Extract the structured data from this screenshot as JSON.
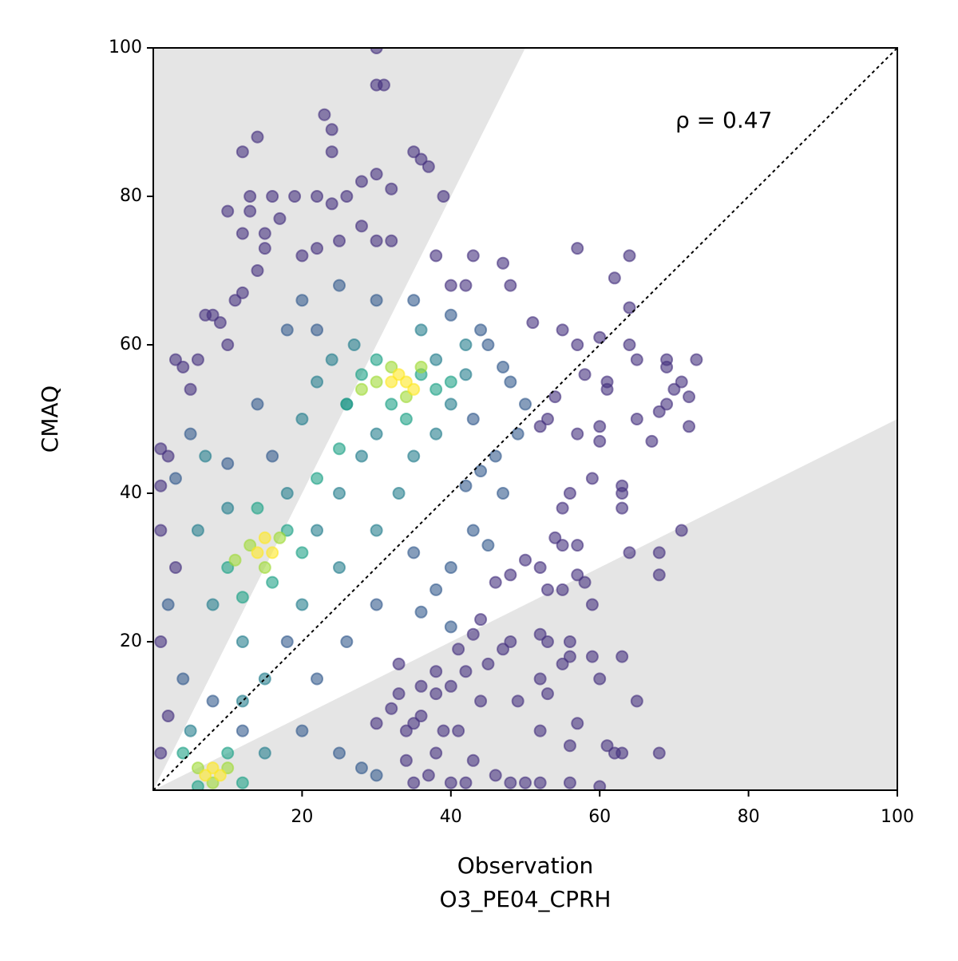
{
  "chart_data": {
    "type": "scatter",
    "xlabel": [
      "Observation",
      "O3_PE04_CPRH"
    ],
    "ylabel": "CMAQ",
    "annotation": "ρ = 0.47",
    "xlim": [
      0,
      100
    ],
    "ylim": [
      0,
      100
    ],
    "xticks": [
      20,
      40,
      60,
      80,
      100
    ],
    "yticks": [
      20,
      40,
      60,
      80,
      100
    ],
    "identity_line": true,
    "shade_slopes": [
      0.5,
      2
    ],
    "shade_color": "#e5e5e5",
    "marker_opacity": 0.6,
    "groups": [
      {
        "color": "#46327e",
        "points": [
          [
            30,
            100
          ],
          [
            30,
            95
          ],
          [
            31,
            95
          ],
          [
            23,
            91
          ],
          [
            24,
            89
          ],
          [
            14,
            88
          ],
          [
            12,
            86
          ],
          [
            24,
            86
          ],
          [
            35,
            86
          ],
          [
            36,
            85
          ],
          [
            37,
            84
          ],
          [
            28,
            82
          ],
          [
            30,
            83
          ],
          [
            32,
            81
          ],
          [
            39,
            80
          ],
          [
            13,
            80
          ],
          [
            16,
            80
          ],
          [
            19,
            80
          ],
          [
            22,
            80
          ],
          [
            26,
            80
          ],
          [
            10,
            78
          ],
          [
            13,
            78
          ],
          [
            17,
            77
          ],
          [
            24,
            79
          ],
          [
            15,
            75
          ],
          [
            12,
            75
          ],
          [
            28,
            76
          ],
          [
            30,
            74
          ],
          [
            32,
            74
          ],
          [
            38,
            72
          ],
          [
            43,
            72
          ],
          [
            47,
            71
          ],
          [
            57,
            73
          ],
          [
            62,
            69
          ],
          [
            64,
            72
          ],
          [
            48,
            68
          ],
          [
            42,
            68
          ],
          [
            40,
            68
          ],
          [
            51,
            63
          ],
          [
            55,
            62
          ],
          [
            57,
            60
          ],
          [
            60,
            61
          ],
          [
            58,
            56
          ],
          [
            61,
            55
          ],
          [
            61,
            54
          ],
          [
            64,
            60
          ],
          [
            65,
            58
          ],
          [
            64,
            65
          ],
          [
            69,
            58
          ],
          [
            69,
            57
          ],
          [
            73,
            58
          ],
          [
            70,
            54
          ],
          [
            71,
            55
          ],
          [
            72,
            53
          ],
          [
            69,
            52
          ],
          [
            68,
            51
          ],
          [
            65,
            50
          ],
          [
            72,
            49
          ],
          [
            67,
            47
          ],
          [
            57,
            48
          ],
          [
            60,
            47
          ],
          [
            60,
            49
          ],
          [
            52,
            49
          ],
          [
            53,
            50
          ],
          [
            54,
            53
          ],
          [
            59,
            42
          ],
          [
            63,
            41
          ],
          [
            63,
            40
          ],
          [
            63,
            38
          ],
          [
            56,
            40
          ],
          [
            55,
            38
          ],
          [
            54,
            34
          ],
          [
            55,
            33
          ],
          [
            57,
            33
          ],
          [
            52,
            30
          ],
          [
            53,
            27
          ],
          [
            57,
            29
          ],
          [
            58,
            28
          ],
          [
            59,
            25
          ],
          [
            64,
            32
          ],
          [
            68,
            32
          ],
          [
            68,
            29
          ],
          [
            71,
            35
          ],
          [
            55,
            27
          ],
          [
            50,
            31
          ],
          [
            48,
            29
          ],
          [
            46,
            28
          ],
          [
            44,
            23
          ],
          [
            43,
            21
          ],
          [
            41,
            19
          ],
          [
            42,
            16
          ],
          [
            45,
            17
          ],
          [
            44,
            12
          ],
          [
            47,
            19
          ],
          [
            48,
            20
          ],
          [
            49,
            12
          ],
          [
            52,
            21
          ],
          [
            53,
            20
          ],
          [
            52,
            15
          ],
          [
            53,
            13
          ],
          [
            52,
            8
          ],
          [
            55,
            17
          ],
          [
            56,
            18
          ],
          [
            56,
            20
          ],
          [
            57,
            9
          ],
          [
            56,
            6
          ],
          [
            59,
            18
          ],
          [
            60,
            15
          ],
          [
            61,
            6
          ],
          [
            62,
            5
          ],
          [
            63,
            5
          ],
          [
            63,
            18
          ],
          [
            65,
            12
          ],
          [
            68,
            5
          ],
          [
            43,
            4
          ],
          [
            46,
            2
          ],
          [
            48,
            1
          ],
          [
            50,
            1
          ],
          [
            52,
            1
          ],
          [
            56,
            1
          ],
          [
            60,
            0.5
          ],
          [
            35,
            1
          ],
          [
            37,
            2
          ],
          [
            40,
            1
          ],
          [
            42,
            1
          ],
          [
            38,
            5
          ],
          [
            39,
            8
          ],
          [
            41,
            8
          ],
          [
            36,
            10
          ],
          [
            38,
            13
          ],
          [
            35,
            9
          ],
          [
            34,
            8
          ],
          [
            34,
            4
          ],
          [
            30,
            9
          ],
          [
            32,
            11
          ],
          [
            33,
            13
          ],
          [
            33,
            17
          ],
          [
            36,
            14
          ],
          [
            38,
            16
          ],
          [
            40,
            14
          ],
          [
            1,
            46
          ],
          [
            2,
            45
          ],
          [
            1,
            41
          ],
          [
            3,
            58
          ],
          [
            4,
            57
          ],
          [
            5,
            54
          ],
          [
            6,
            58
          ],
          [
            7,
            64
          ],
          [
            8,
            64
          ],
          [
            9,
            63
          ],
          [
            10,
            60
          ],
          [
            11,
            66
          ],
          [
            12,
            67
          ],
          [
            14,
            70
          ],
          [
            15,
            73
          ],
          [
            20,
            72
          ],
          [
            22,
            73
          ],
          [
            25,
            74
          ],
          [
            3,
            30
          ],
          [
            1,
            35
          ],
          [
            1,
            20
          ],
          [
            2,
            10
          ],
          [
            1,
            5
          ]
        ]
      },
      {
        "color": "#365c8d",
        "points": [
          [
            45,
            60
          ],
          [
            47,
            57
          ],
          [
            48,
            55
          ],
          [
            50,
            52
          ],
          [
            49,
            48
          ],
          [
            46,
            45
          ],
          [
            44,
            43
          ],
          [
            42,
            41
          ],
          [
            40,
            30
          ],
          [
            38,
            27
          ],
          [
            36,
            24
          ],
          [
            40,
            22
          ],
          [
            35,
            32
          ],
          [
            47,
            40
          ],
          [
            43,
            35
          ],
          [
            45,
            33
          ],
          [
            30,
            66
          ],
          [
            35,
            66
          ],
          [
            40,
            64
          ],
          [
            25,
            68
          ],
          [
            20,
            66
          ],
          [
            18,
            62
          ],
          [
            5,
            48
          ],
          [
            3,
            42
          ],
          [
            2,
            25
          ],
          [
            4,
            15
          ],
          [
            8,
            12
          ],
          [
            12,
            8
          ],
          [
            20,
            8
          ],
          [
            25,
            5
          ],
          [
            28,
            3
          ],
          [
            30,
            2
          ],
          [
            22,
            15
          ],
          [
            18,
            20
          ],
          [
            26,
            20
          ],
          [
            30,
            25
          ],
          [
            16,
            45
          ],
          [
            10,
            44
          ],
          [
            14,
            52
          ],
          [
            22,
            62
          ],
          [
            43,
            50
          ],
          [
            44,
            62
          ]
        ]
      },
      {
        "color": "#277f8e",
        "points": [
          [
            25,
            40
          ],
          [
            28,
            45
          ],
          [
            30,
            48
          ],
          [
            35,
            45
          ],
          [
            38,
            48
          ],
          [
            40,
            52
          ],
          [
            42,
            56
          ],
          [
            20,
            50
          ],
          [
            22,
            55
          ],
          [
            18,
            40
          ],
          [
            10,
            38
          ],
          [
            8,
            25
          ],
          [
            12,
            20
          ],
          [
            15,
            15
          ],
          [
            20,
            25
          ],
          [
            25,
            30
          ],
          [
            30,
            35
          ],
          [
            33,
            40
          ],
          [
            38,
            58
          ],
          [
            27,
            60
          ],
          [
            24,
            58
          ],
          [
            6,
            35
          ],
          [
            7,
            45
          ],
          [
            12,
            12
          ],
          [
            5,
            8
          ],
          [
            15,
            5
          ],
          [
            22,
            35
          ],
          [
            26,
            52
          ],
          [
            42,
            60
          ],
          [
            36,
            62
          ]
        ]
      },
      {
        "color": "#1fa187",
        "points": [
          [
            28,
            56
          ],
          [
            30,
            58
          ],
          [
            36,
            56
          ],
          [
            38,
            54
          ],
          [
            40,
            55
          ],
          [
            26,
            52
          ],
          [
            32,
            52
          ],
          [
            14,
            38
          ],
          [
            18,
            35
          ],
          [
            10,
            30
          ],
          [
            12,
            26
          ],
          [
            16,
            28
          ],
          [
            20,
            32
          ],
          [
            22,
            42
          ],
          [
            25,
            46
          ],
          [
            4,
            5
          ],
          [
            10,
            5
          ],
          [
            12,
            1
          ],
          [
            6,
            0.5
          ],
          [
            34,
            50
          ]
        ]
      },
      {
        "color": "#a0da39",
        "points": [
          [
            30,
            55
          ],
          [
            32,
            57
          ],
          [
            34,
            53
          ],
          [
            36,
            57
          ],
          [
            28,
            54
          ],
          [
            13,
            33
          ],
          [
            15,
            30
          ],
          [
            17,
            34
          ],
          [
            11,
            31
          ],
          [
            6,
            3
          ],
          [
            8,
            1
          ],
          [
            10,
            3
          ]
        ]
      },
      {
        "color": "#fde725",
        "points": [
          [
            32,
            55
          ],
          [
            34,
            55
          ],
          [
            33,
            56
          ],
          [
            35,
            54
          ],
          [
            14,
            32
          ],
          [
            16,
            32
          ],
          [
            15,
            34
          ],
          [
            7,
            2
          ],
          [
            9,
            2
          ],
          [
            8,
            3
          ]
        ]
      }
    ]
  }
}
